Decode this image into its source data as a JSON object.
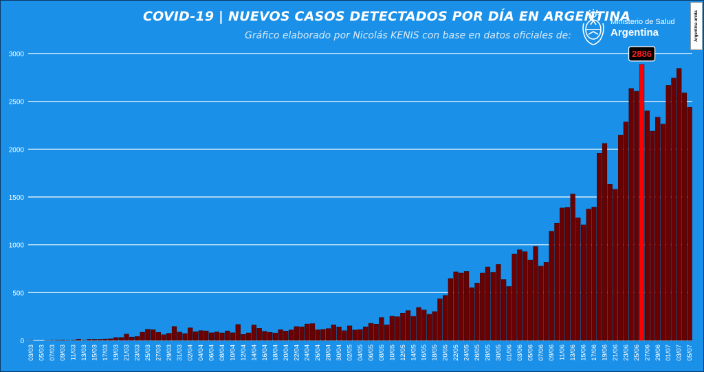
{
  "header": {
    "title": "COVID-19  |  NUEVOS CASOS DETECTADOS POR DÍA EN ARGENTINA",
    "subtitle": "Gráfico elaborado por Nicolás KENIS con base en datos oficiales de:",
    "logo_ministry": "Ministerio de Salud",
    "logo_country": "Argentina",
    "badge_text": "Argentina unida"
  },
  "colors": {
    "background": "#1a90e8",
    "bar": "#6b0000",
    "highlight_bar": "#ff0000",
    "gridline": "#ffffff",
    "callout_bg": "#000000",
    "callout_text": "#ff2020"
  },
  "chart_data": {
    "type": "bar",
    "title": "COVID-19  |  NUEVOS CASOS DETECTADOS POR DÍA EN ARGENTINA",
    "ylim": [
      0,
      3000
    ],
    "yticks": [
      0,
      500,
      1000,
      1500,
      2000,
      2500,
      3000
    ],
    "grid": true,
    "x_tick_labels": [
      "03/03",
      "05/03",
      "07/03",
      "09/03",
      "11/03",
      "13/03",
      "15/03",
      "17/03",
      "19/03",
      "21/03",
      "23/03",
      "25/03",
      "27/03",
      "29/03",
      "31/03",
      "02/04",
      "04/04",
      "06/04",
      "08/04",
      "10/04",
      "12/04",
      "14/04",
      "16/04",
      "18/04",
      "20/04",
      "22/04",
      "24/04",
      "26/04",
      "28/04",
      "30/04",
      "02/05",
      "04/05",
      "06/05",
      "08/05",
      "10/05",
      "12/05",
      "14/05",
      "16/05",
      "18/05",
      "20/05",
      "22/05",
      "24/05",
      "26/05",
      "28/05",
      "30/05",
      "01/06",
      "03/06",
      "05/06",
      "07/06",
      "09/06",
      "11/06",
      "13/06",
      "15/06",
      "17/06",
      "19/06",
      "21/06",
      "23/06",
      "25/06",
      "27/06",
      "29/06",
      "01/07",
      "03/07",
      "05/07"
    ],
    "categories": [
      "03/03",
      "04/03",
      "05/03",
      "06/03",
      "07/03",
      "08/03",
      "09/03",
      "10/03",
      "11/03",
      "12/03",
      "13/03",
      "14/03",
      "15/03",
      "16/03",
      "17/03",
      "18/03",
      "19/03",
      "20/03",
      "21/03",
      "22/03",
      "23/03",
      "24/03",
      "25/03",
      "26/03",
      "27/03",
      "28/03",
      "29/03",
      "30/03",
      "31/03",
      "01/04",
      "02/04",
      "03/04",
      "04/04",
      "05/04",
      "06/04",
      "07/04",
      "08/04",
      "09/04",
      "10/04",
      "11/04",
      "12/04",
      "13/04",
      "14/04",
      "15/04",
      "16/04",
      "17/04",
      "18/04",
      "19/04",
      "20/04",
      "21/04",
      "22/04",
      "23/04",
      "24/04",
      "25/04",
      "26/04",
      "27/04",
      "28/04",
      "29/04",
      "30/04",
      "01/05",
      "02/05",
      "03/05",
      "04/05",
      "05/05",
      "06/05",
      "07/05",
      "08/05",
      "09/05",
      "10/05",
      "11/05",
      "12/05",
      "13/05",
      "14/05",
      "15/05",
      "16/05",
      "17/05",
      "18/05",
      "19/05",
      "20/05",
      "21/05",
      "22/05",
      "23/05",
      "24/05",
      "25/05",
      "26/05",
      "27/05",
      "28/05",
      "29/05",
      "30/05",
      "31/05",
      "01/06",
      "02/06",
      "03/06",
      "04/06",
      "05/06",
      "06/06",
      "07/06",
      "08/06",
      "09/06",
      "10/06",
      "11/06",
      "12/06",
      "13/06",
      "14/06",
      "15/06",
      "16/06",
      "17/06",
      "18/06",
      "19/06",
      "20/06",
      "21/06",
      "22/06",
      "23/06",
      "24/06",
      "25/06",
      "26/06",
      "27/06",
      "28/06",
      "29/06",
      "30/06",
      "01/07",
      "02/07",
      "03/07",
      "04/07",
      "05/07"
    ],
    "values": [
      1,
      0,
      0,
      1,
      2,
      3,
      5,
      2,
      4,
      12,
      3,
      11,
      11,
      11,
      14,
      17,
      30,
      31,
      67,
      35,
      41,
      86,
      117,
      112,
      85,
      60,
      75,
      146,
      87,
      72,
      132,
      91,
      103,
      100,
      80,
      89,
      79,
      100,
      80,
      167,
      63,
      79,
      162,
      127,
      96,
      85,
      78,
      113,
      99,
      110,
      145,
      143,
      172,
      176,
      111,
      115,
      125,
      163,
      142,
      102,
      152,
      109,
      114,
      143,
      179,
      171,
      240,
      164,
      255,
      248,
      285,
      312,
      253,
      345,
      319,
      274,
      302,
      436,
      470,
      648,
      718,
      704,
      722,
      552,
      600,
      704,
      768,
      714,
      795,
      637,
      564,
      904,
      949,
      929,
      840,
      983,
      778,
      816,
      1141,
      1226,
      1386,
      1391,
      1531,
      1282,
      1208,
      1374,
      1393,
      1958,
      2060,
      1634,
      1581,
      2146,
      2285,
      2635,
      2606,
      2886,
      2401,
      2189,
      2335,
      2262,
      2667,
      2744,
      2845,
      2590,
      2439
    ],
    "highlight": {
      "category": "26/06",
      "value": 2886,
      "label": "2886"
    }
  }
}
